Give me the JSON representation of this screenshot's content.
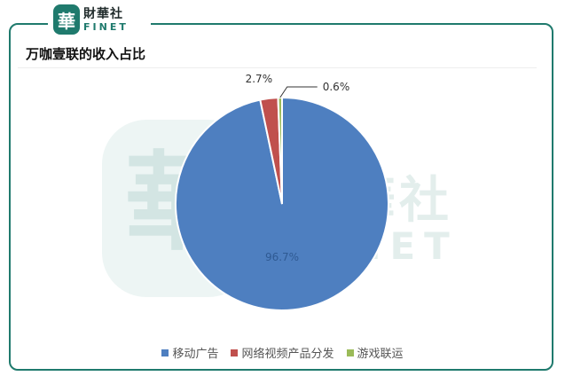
{
  "brand": {
    "seal": "華",
    "name_cn": "財華社",
    "name_en": "FINET"
  },
  "watermark": {
    "seal": "華",
    "name_cn": "財華社",
    "name_en": "FINET"
  },
  "colors": {
    "brand": "#1f7a6d"
  },
  "chart_data": {
    "type": "pie",
    "title": "万咖壹联的收入占比",
    "categories": [
      "移动广告",
      "网络视频产品分发",
      "游戏联运"
    ],
    "values": [
      96.7,
      2.7,
      0.6
    ],
    "labels": [
      "96.7%",
      "2.7%",
      "0.6%"
    ],
    "colors": [
      "#4e7fc0",
      "#c0504d",
      "#9bbb59"
    ],
    "legend": "bottom"
  }
}
